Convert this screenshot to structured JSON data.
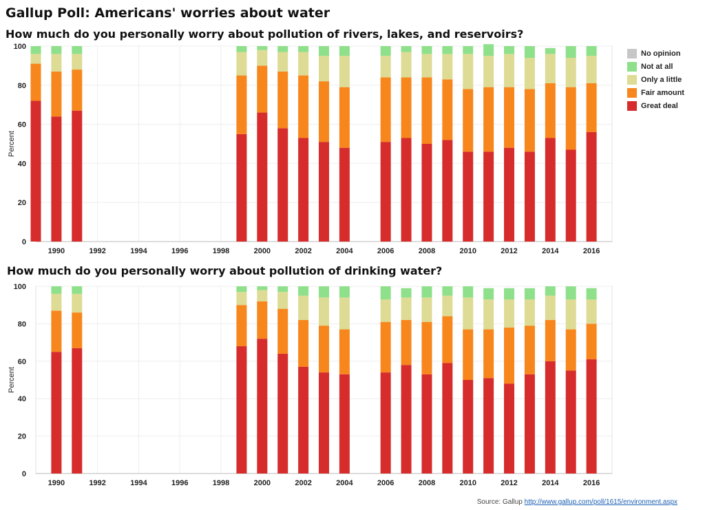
{
  "main_title": "Gallup Poll: Americans' worries about water",
  "legend": {
    "items": [
      {
        "label": "No opinion",
        "color": "#c7c7c7"
      },
      {
        "label": "Not at all",
        "color": "#8ee08a"
      },
      {
        "label": "Only a little",
        "color": "#dddb94"
      },
      {
        "label": "Fair amount",
        "color": "#f7861c"
      },
      {
        "label": "Great deal",
        "color": "#d62c2c"
      }
    ]
  },
  "source": {
    "prefix": "Source: Gallup",
    "link_text": "http://www.gallup.com/poll/1615/environment.aspx"
  },
  "chart_data": [
    {
      "type": "bar",
      "stacked": true,
      "title": "How much do you personally worry about pollution of rivers, lakes, and reservoirs?",
      "ylabel": "Percent",
      "ylim": [
        0,
        100
      ],
      "yticks": [
        0,
        20,
        40,
        60,
        80,
        100
      ],
      "xlim": [
        1989,
        2017
      ],
      "xticks": [
        1990,
        1992,
        1994,
        1996,
        1998,
        2000,
        2002,
        2004,
        2006,
        2008,
        2010,
        2012,
        2014,
        2016
      ],
      "stack_order": [
        "Great deal",
        "Fair amount",
        "Only a little",
        "Not at all",
        "No opinion"
      ],
      "x": [
        1989,
        1990,
        1991,
        1999,
        2000,
        2001,
        2002,
        2003,
        2004,
        2006,
        2007,
        2008,
        2009,
        2010,
        2011,
        2012,
        2013,
        2014,
        2015,
        2016
      ],
      "series": [
        {
          "name": "Great deal",
          "values": [
            72,
            64,
            67,
            55,
            66,
            58,
            53,
            51,
            48,
            51,
            53,
            50,
            52,
            46,
            46,
            48,
            46,
            53,
            47,
            56
          ]
        },
        {
          "name": "Fair amount",
          "values": [
            19,
            23,
            21,
            30,
            24,
            29,
            32,
            31,
            31,
            33,
            31,
            34,
            31,
            32,
            33,
            31,
            32,
            28,
            32,
            25
          ]
        },
        {
          "name": "Only a little",
          "values": [
            5,
            9,
            8,
            12,
            8,
            10,
            12,
            13,
            16,
            11,
            13,
            12,
            13,
            18,
            16,
            17,
            16,
            15,
            15,
            14
          ]
        },
        {
          "name": "Not at all",
          "values": [
            4,
            4,
            4,
            3,
            2,
            3,
            3,
            5,
            5,
            5,
            3,
            4,
            4,
            4,
            6,
            4,
            6,
            3,
            6,
            5
          ]
        },
        {
          "name": "No opinion",
          "values": [
            0,
            0,
            0,
            0,
            0,
            0,
            0,
            0,
            0,
            0,
            0,
            0,
            0,
            0,
            0,
            0,
            0,
            0,
            0,
            0
          ]
        }
      ]
    },
    {
      "type": "bar",
      "stacked": true,
      "title": "How much do you personally worry about pollution of drinking water?",
      "ylabel": "Percent",
      "ylim": [
        0,
        100
      ],
      "yticks": [
        0,
        20,
        40,
        60,
        80,
        100
      ],
      "xlim": [
        1989,
        2017
      ],
      "xticks": [
        1990,
        1992,
        1994,
        1996,
        1998,
        2000,
        2002,
        2004,
        2006,
        2008,
        2010,
        2012,
        2014,
        2016
      ],
      "stack_order": [
        "Great deal",
        "Fair amount",
        "Only a little",
        "Not at all",
        "No opinion"
      ],
      "x": [
        1990,
        1991,
        1999,
        2000,
        2001,
        2002,
        2003,
        2004,
        2006,
        2007,
        2008,
        2009,
        2010,
        2011,
        2012,
        2013,
        2014,
        2015,
        2016
      ],
      "series": [
        {
          "name": "Great deal",
          "values": [
            65,
            67,
            68,
            72,
            64,
            57,
            54,
            53,
            54,
            58,
            53,
            59,
            50,
            51,
            48,
            53,
            60,
            55,
            61
          ]
        },
        {
          "name": "Fair amount",
          "values": [
            22,
            19,
            22,
            20,
            24,
            25,
            25,
            24,
            27,
            24,
            28,
            25,
            27,
            26,
            30,
            26,
            22,
            22,
            19
          ]
        },
        {
          "name": "Only a little",
          "values": [
            9,
            10,
            7,
            6,
            9,
            13,
            15,
            17,
            12,
            12,
            13,
            11,
            17,
            16,
            15,
            14,
            13,
            16,
            13
          ]
        },
        {
          "name": "Not at all",
          "values": [
            4,
            4,
            3,
            2,
            3,
            5,
            6,
            6,
            7,
            5,
            6,
            5,
            6,
            6,
            6,
            6,
            5,
            7,
            6
          ]
        },
        {
          "name": "No opinion",
          "values": [
            0,
            0,
            0,
            0,
            0,
            0,
            0,
            0,
            0,
            0,
            0,
            0,
            0,
            0,
            0,
            0,
            0,
            0,
            0
          ]
        }
      ]
    }
  ]
}
